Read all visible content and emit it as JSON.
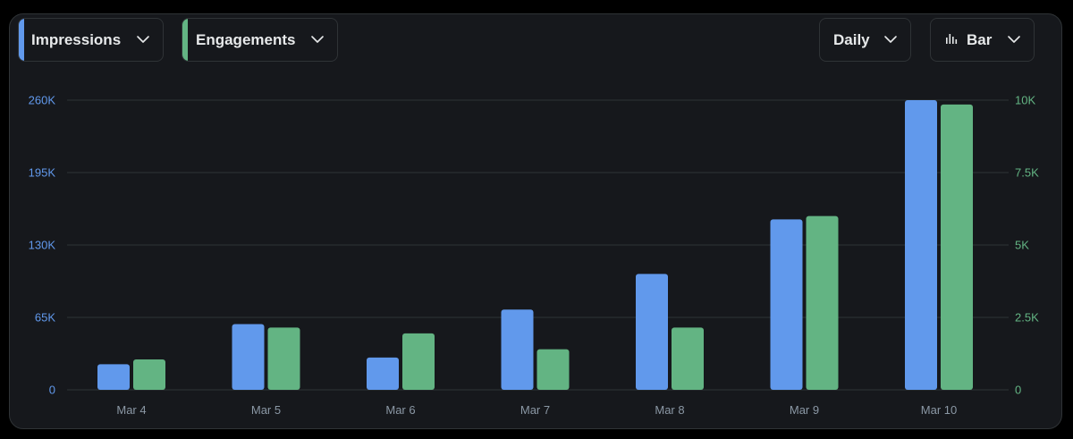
{
  "controls": {
    "metric_left": "Impressions",
    "metric_right": "Engagements",
    "interval": "Daily",
    "chart_type_label": "Bar"
  },
  "colors": {
    "impressions": "#6199ec",
    "engagements": "#63b483",
    "grid": "#2f3336",
    "tick_text": "#8b98a5"
  },
  "chart_data": {
    "type": "bar",
    "title": "",
    "xlabel": "",
    "ylabel": "",
    "categories": [
      "Mar 4",
      "Mar 5",
      "Mar 6",
      "Mar 7",
      "Mar 8",
      "Mar 9",
      "Mar 10"
    ],
    "series": [
      {
        "name": "Impressions",
        "axis": "left",
        "values": [
          23000,
          59000,
          29000,
          72000,
          104000,
          153000,
          260000
        ]
      },
      {
        "name": "Engagements",
        "axis": "right",
        "values": [
          1050,
          2150,
          1950,
          1400,
          2150,
          6000,
          9850
        ]
      }
    ],
    "y_left": {
      "ylim": [
        0,
        260000
      ],
      "ticks": [
        "0",
        "65K",
        "130K",
        "195K",
        "260K"
      ]
    },
    "y_right": {
      "ylim": [
        0,
        10000
      ],
      "ticks": [
        "0",
        "2.5K",
        "5K",
        "7.5K",
        "10K"
      ]
    },
    "grid": true,
    "legend": "none"
  }
}
